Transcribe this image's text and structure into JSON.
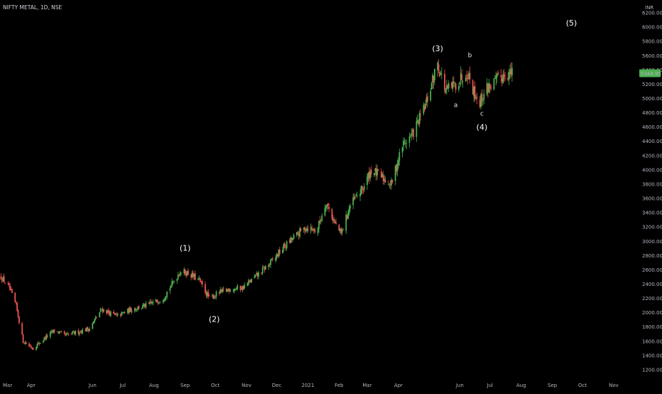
{
  "header": {
    "symbol_title": "NIFTY METAL, 1D, NSE",
    "currency": "INR"
  },
  "price_tag": {
    "value": "5348.95",
    "color": "#4caf50"
  },
  "colors": {
    "up": "#4caf50",
    "down": "#ef5350",
    "background": "#000000",
    "axis_text": "#b2b5be"
  },
  "chart_data": {
    "type": "candlestick",
    "y_axis": {
      "ylim": [
        1100,
        6300
      ],
      "ticks": [
        1200,
        1400,
        1600,
        1800,
        2000,
        2200,
        2400,
        2600,
        2800,
        3000,
        3200,
        3400,
        3600,
        3800,
        4000,
        4200,
        4400,
        4600,
        4800,
        5000,
        5200,
        5400,
        5600,
        5800,
        6000,
        6200
      ],
      "tick_labels": [
        "1200.00",
        "1400.00",
        "1600.00",
        "1800.00",
        "2000.00",
        "2200.00",
        "2400.00",
        "2600.00",
        "2800.00",
        "3000.00",
        "3200.00",
        "3400.00",
        "3600.00",
        "3800.00",
        "4000.00",
        "4200.00",
        "4400.00",
        "4600.00",
        "4800.00",
        "5000.00",
        "5200.00",
        "5400.00",
        "5600.00",
        "5800.00",
        "6000.00",
        "6200.00"
      ]
    },
    "x_axis": {
      "xlim": [
        "2020-03-01",
        "2021-11-25"
      ],
      "ticks": [
        {
          "date": "2020-03-01",
          "label": "Mar"
        },
        {
          "date": "2020-04-01",
          "label": "Apr"
        },
        {
          "date": "2020-06-01",
          "label": "Jun"
        },
        {
          "date": "2020-07-01",
          "label": "Jul"
        },
        {
          "date": "2020-08-01",
          "label": "Aug"
        },
        {
          "date": "2020-09-01",
          "label": "Sep"
        },
        {
          "date": "2020-10-01",
          "label": "Oct"
        },
        {
          "date": "2020-11-01",
          "label": "Nov"
        },
        {
          "date": "2020-12-01",
          "label": "Dec"
        },
        {
          "date": "2021-01-01",
          "label": "2021"
        },
        {
          "date": "2021-02-01",
          "label": "Feb"
        },
        {
          "date": "2021-03-01",
          "label": "Mar"
        },
        {
          "date": "2021-04-01",
          "label": "Apr"
        },
        {
          "date": "2021-06-01",
          "label": "Jun"
        },
        {
          "date": "2021-07-01",
          "label": "Jul"
        },
        {
          "date": "2021-08-01",
          "label": "Aug"
        },
        {
          "date": "2021-09-01",
          "label": "Sep"
        },
        {
          "date": "2021-10-01",
          "label": "Oct"
        },
        {
          "date": "2021-11-01",
          "label": "Nov"
        }
      ]
    },
    "price_path": [
      {
        "date": "2020-03-02",
        "close": 2500
      },
      {
        "date": "2020-03-10",
        "close": 2350
      },
      {
        "date": "2020-03-17",
        "close": 2100
      },
      {
        "date": "2020-03-24",
        "close": 1600
      },
      {
        "date": "2020-04-03",
        "close": 1500
      },
      {
        "date": "2020-04-15",
        "close": 1650
      },
      {
        "date": "2020-04-24",
        "close": 1750
      },
      {
        "date": "2020-05-05",
        "close": 1680
      },
      {
        "date": "2020-05-15",
        "close": 1720
      },
      {
        "date": "2020-05-29",
        "close": 1780
      },
      {
        "date": "2020-06-10",
        "close": 2050
      },
      {
        "date": "2020-06-25",
        "close": 1950
      },
      {
        "date": "2020-07-10",
        "close": 2050
      },
      {
        "date": "2020-07-25",
        "close": 2100
      },
      {
        "date": "2020-08-10",
        "close": 2200
      },
      {
        "date": "2020-08-27",
        "close": 2580
      },
      {
        "date": "2020-09-05",
        "close": 2550
      },
      {
        "date": "2020-09-15",
        "close": 2450
      },
      {
        "date": "2020-09-25",
        "close": 2200
      },
      {
        "date": "2020-10-05",
        "close": 2280
      },
      {
        "date": "2020-10-15",
        "close": 2330
      },
      {
        "date": "2020-10-28",
        "close": 2350
      },
      {
        "date": "2020-11-10",
        "close": 2500
      },
      {
        "date": "2020-11-25",
        "close": 2700
      },
      {
        "date": "2020-12-08",
        "close": 2920
      },
      {
        "date": "2020-12-18",
        "close": 3050
      },
      {
        "date": "2020-12-30",
        "close": 3200
      },
      {
        "date": "2021-01-10",
        "close": 3150
      },
      {
        "date": "2021-01-19",
        "close": 3550
      },
      {
        "date": "2021-01-28",
        "close": 3250
      },
      {
        "date": "2021-02-03",
        "close": 3100
      },
      {
        "date": "2021-02-12",
        "close": 3500
      },
      {
        "date": "2021-02-25",
        "close": 3750
      },
      {
        "date": "2021-03-05",
        "close": 4000
      },
      {
        "date": "2021-03-15",
        "close": 3900
      },
      {
        "date": "2021-03-25",
        "close": 3800
      },
      {
        "date": "2021-04-05",
        "close": 4350
      },
      {
        "date": "2021-04-15",
        "close": 4500
      },
      {
        "date": "2021-04-28",
        "close": 4900
      },
      {
        "date": "2021-05-10",
        "close": 5500
      },
      {
        "date": "2021-05-18",
        "close": 5100
      },
      {
        "date": "2021-05-28",
        "close": 5200
      },
      {
        "date": "2021-06-08",
        "close": 5400
      },
      {
        "date": "2021-06-15",
        "close": 5100
      },
      {
        "date": "2021-06-21",
        "close": 4950
      },
      {
        "date": "2021-06-28",
        "close": 5150
      },
      {
        "date": "2021-07-08",
        "close": 5250
      },
      {
        "date": "2021-07-16",
        "close": 5350
      },
      {
        "date": "2021-07-23",
        "close": 5348.95
      }
    ],
    "annotations": [
      {
        "text": "(1)",
        "date": "2020-09-01",
        "price": 2870,
        "kind": "major"
      },
      {
        "text": "(2)",
        "date": "2020-09-30",
        "price": 1870,
        "kind": "major"
      },
      {
        "text": "(3)",
        "date": "2021-05-10",
        "price": 5660,
        "kind": "major"
      },
      {
        "text": "a",
        "date": "2021-05-28",
        "price": 4880,
        "kind": "minor"
      },
      {
        "text": "b",
        "date": "2021-06-11",
        "price": 5580,
        "kind": "minor"
      },
      {
        "text": "c",
        "date": "2021-06-23",
        "price": 4760,
        "kind": "minor"
      },
      {
        "text": "(4)",
        "date": "2021-06-23",
        "price": 4560,
        "kind": "major"
      },
      {
        "text": "(5)",
        "date": "2021-09-20",
        "price": 6020,
        "kind": "major"
      }
    ]
  }
}
